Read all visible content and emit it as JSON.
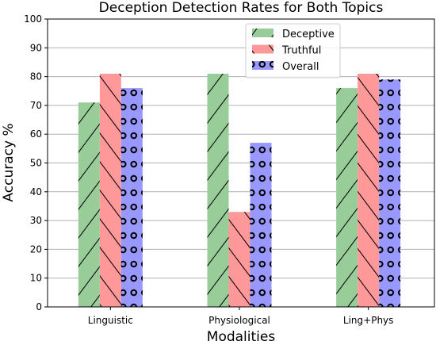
{
  "chart_data": {
    "type": "bar",
    "title": "Deception Detection Rates for Both Topics",
    "xlabel": "Modalities",
    "ylabel": "Accuracy %",
    "categories": [
      "Linguistic",
      "Physiological",
      "Ling+Phys"
    ],
    "ylim": [
      0,
      100
    ],
    "yticks": [
      0,
      10,
      20,
      30,
      40,
      50,
      60,
      70,
      80,
      90,
      100
    ],
    "grid": "horizontal",
    "legend_position": "top-center",
    "series": [
      {
        "name": "Deceptive",
        "values": [
          71,
          81,
          76
        ],
        "color": "#98cc98",
        "hatch": "forward-slash"
      },
      {
        "name": "Truthful",
        "values": [
          81,
          33,
          81
        ],
        "color": "#ff9898",
        "hatch": "back-slash"
      },
      {
        "name": "Overall",
        "values": [
          76,
          57,
          79
        ],
        "color": "#9898ff",
        "hatch": "circles"
      }
    ]
  }
}
